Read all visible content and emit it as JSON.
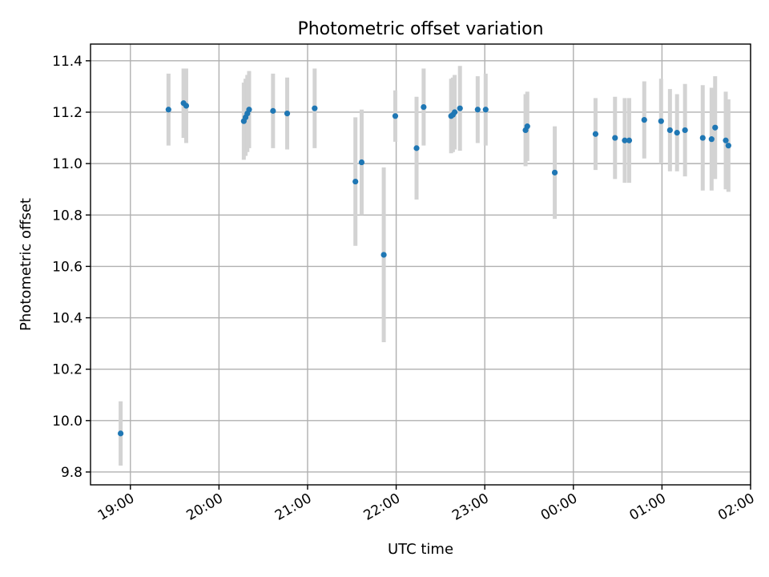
{
  "chart_data": {
    "type": "scatter",
    "title": "Photometric offset variation",
    "xlabel": "UTC time",
    "ylabel": "Photometric offset",
    "grid": true,
    "colors": {
      "point": "#1f77b4",
      "errorbar": "#d3d3d3",
      "grid": "#b0b0b0"
    },
    "xlim": [
      -0.45,
      7.0
    ],
    "ylim": [
      9.75,
      11.465
    ],
    "xticks": [
      {
        "v": 0,
        "label": "19:00"
      },
      {
        "v": 1,
        "label": "20:00"
      },
      {
        "v": 2,
        "label": "21:00"
      },
      {
        "v": 3,
        "label": "22:00"
      },
      {
        "v": 4,
        "label": "23:00"
      },
      {
        "v": 5,
        "label": "00:00"
      },
      {
        "v": 6,
        "label": "01:00"
      },
      {
        "v": 7,
        "label": "02:00"
      }
    ],
    "yticks": [
      {
        "v": 9.8,
        "label": "9.8"
      },
      {
        "v": 10.0,
        "label": "10.0"
      },
      {
        "v": 10.2,
        "label": "10.2"
      },
      {
        "v": 10.4,
        "label": "10.4"
      },
      {
        "v": 10.6,
        "label": "10.6"
      },
      {
        "v": 10.8,
        "label": "10.8"
      },
      {
        "v": 11.0,
        "label": "11.0"
      },
      {
        "v": 11.2,
        "label": "11.2"
      },
      {
        "v": 11.4,
        "label": "11.4"
      }
    ],
    "x_unit": "hours after 19:00 UTC",
    "points": [
      {
        "x": -0.11,
        "y": 9.95,
        "err": 0.125
      },
      {
        "x": 0.43,
        "y": 11.21,
        "err": 0.14
      },
      {
        "x": 0.6,
        "y": 11.235,
        "err": 0.135
      },
      {
        "x": 0.63,
        "y": 11.225,
        "err": 0.145
      },
      {
        "x": 1.28,
        "y": 11.165,
        "err": 0.15
      },
      {
        "x": 1.3,
        "y": 11.18,
        "err": 0.15
      },
      {
        "x": 1.32,
        "y": 11.195,
        "err": 0.15
      },
      {
        "x": 1.34,
        "y": 11.21,
        "err": 0.15
      },
      {
        "x": 1.61,
        "y": 11.205,
        "err": 0.145
      },
      {
        "x": 1.77,
        "y": 11.195,
        "err": 0.14
      },
      {
        "x": 2.08,
        "y": 11.215,
        "err": 0.155
      },
      {
        "x": 2.54,
        "y": 10.93,
        "err": 0.25
      },
      {
        "x": 2.61,
        "y": 11.005,
        "err": 0.205
      },
      {
        "x": 2.86,
        "y": 10.645,
        "err": 0.34
      },
      {
        "x": 2.99,
        "y": 11.185,
        "err": 0.1
      },
      {
        "x": 3.23,
        "y": 11.06,
        "err": 0.2
      },
      {
        "x": 3.31,
        "y": 11.22,
        "err": 0.15
      },
      {
        "x": 3.62,
        "y": 11.185,
        "err": 0.145
      },
      {
        "x": 3.64,
        "y": 11.19,
        "err": 0.145
      },
      {
        "x": 3.66,
        "y": 11.2,
        "err": 0.145
      },
      {
        "x": 3.72,
        "y": 11.215,
        "err": 0.165
      },
      {
        "x": 3.92,
        "y": 11.21,
        "err": 0.13
      },
      {
        "x": 4.01,
        "y": 11.21,
        "err": 0.14
      },
      {
        "x": 4.46,
        "y": 11.13,
        "err": 0.14
      },
      {
        "x": 4.48,
        "y": 11.145,
        "err": 0.135
      },
      {
        "x": 4.79,
        "y": 10.965,
        "err": 0.18
      },
      {
        "x": 5.25,
        "y": 11.115,
        "err": 0.14
      },
      {
        "x": 5.47,
        "y": 11.1,
        "err": 0.16
      },
      {
        "x": 5.58,
        "y": 11.09,
        "err": 0.165
      },
      {
        "x": 5.63,
        "y": 11.09,
        "err": 0.165
      },
      {
        "x": 5.8,
        "y": 11.17,
        "err": 0.15
      },
      {
        "x": 5.99,
        "y": 11.165,
        "err": 0.165
      },
      {
        "x": 6.09,
        "y": 11.13,
        "err": 0.16
      },
      {
        "x": 6.17,
        "y": 11.12,
        "err": 0.15
      },
      {
        "x": 6.26,
        "y": 11.13,
        "err": 0.18
      },
      {
        "x": 6.46,
        "y": 11.1,
        "err": 0.205
      },
      {
        "x": 6.56,
        "y": 11.095,
        "err": 0.2
      },
      {
        "x": 6.6,
        "y": 11.14,
        "err": 0.2
      },
      {
        "x": 6.72,
        "y": 11.09,
        "err": 0.19
      },
      {
        "x": 6.75,
        "y": 11.07,
        "err": 0.18
      }
    ]
  }
}
